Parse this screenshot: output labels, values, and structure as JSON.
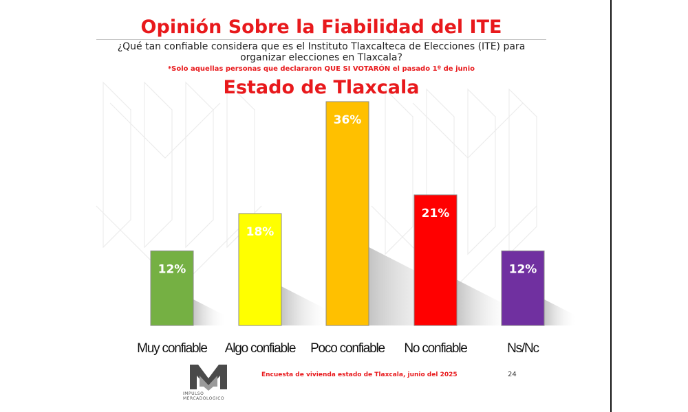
{
  "header": {
    "title": "Opinión Sobre la Fiabilidad del ITE",
    "question": "¿Qué tan confiable considera que es el Instituto Tlaxcalteca de Elecciones (ITE) para organizar elecciones en Tlaxcala?",
    "note": "*Solo aquellas personas que declararon QUE SI VOTARÓN el pasado 1º de junio",
    "subtitle": "Estado de Tlaxcala"
  },
  "chart_data": {
    "type": "bar",
    "categories": [
      "Muy confiable",
      "Algo confiable",
      "Poco confiable",
      "No confiable",
      "Ns/Nc"
    ],
    "values": [
      12,
      18,
      36,
      21,
      12
    ],
    "data_labels": [
      "12%",
      "18%",
      "36%",
      "21%",
      "12%"
    ],
    "colors": [
      "#75b043",
      "#ffff00",
      "#ffc000",
      "#ff0000",
      "#7030a0"
    ],
    "title": "Opinión Sobre la Fiabilidad del ITE",
    "subtitle": "Estado de Tlaxcala",
    "ylim": [
      0,
      36
    ],
    "grid": false,
    "legend": "none"
  },
  "footer": {
    "source": "Encuesta de vivienda estado de Tlaxcala, junio   del 2025",
    "page_number": "24"
  },
  "logo": {
    "text_line1": "IMPULSO",
    "text_line2": "MERCADOLOGICO",
    "icon": "m-monogram-icon"
  }
}
